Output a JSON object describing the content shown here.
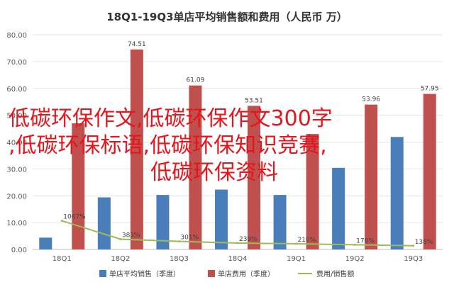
{
  "chart_data": {
    "type": "bar",
    "title": "18Q1-19Q3单店平均销售额和费用（人民币 万）",
    "categories": [
      "18Q1",
      "18Q2",
      "18Q3",
      "18Q4",
      "19Q1",
      "19Q2",
      "19Q3"
    ],
    "series": [
      {
        "name": "单店平均销售（季度）",
        "type": "bar",
        "color": "#4a7ebb",
        "values": [
          4.4,
          19.4,
          20.3,
          22.3,
          20.3,
          30.4,
          41.9
        ]
      },
      {
        "name": "单店费用（季度）",
        "type": "bar",
        "color": "#c0504d",
        "values": [
          47.0,
          74.51,
          61.09,
          53.51,
          43.0,
          53.96,
          57.95
        ],
        "labels": [
          "",
          "74.51",
          "61.09",
          "53.51",
          "",
          "53.96",
          "57.95"
        ]
      },
      {
        "name": "费用/销售额",
        "type": "line",
        "color": "#9bbb59",
        "values": [
          10.67,
          3.83,
          3.01,
          2.39,
          2.1,
          1.76,
          1.38
        ],
        "labels": [
          "1067%",
          "383%",
          "301%",
          "239%",
          "210%",
          "176%",
          "138%"
        ]
      }
    ],
    "ylim": [
      0,
      80
    ],
    "yticks": [
      "0.00",
      "10.00",
      "20.00",
      "30.00",
      "40.00",
      "50.00",
      "60.00",
      "70.00",
      "80.00"
    ],
    "grid": true,
    "legend": "bottom"
  },
  "overlay": {
    "line1": "低碳环保作文,低碳环保作文300字",
    "line2": ",低碳环保标语,低碳环保知识竞赛,",
    "line3": "低碳环保资料"
  }
}
